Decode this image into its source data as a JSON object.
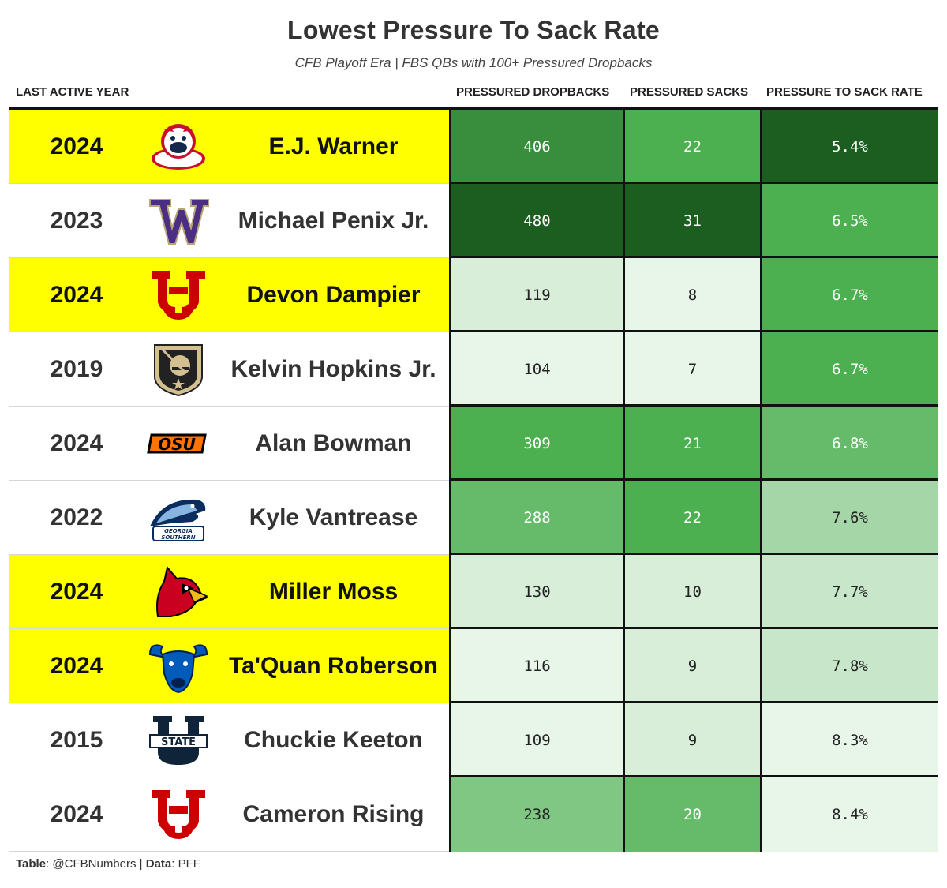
{
  "title": "Lowest Pressure To Sack Rate",
  "subtitle": "CFB Playoff Era | FBS QBs with 100+ Pressured Dropbacks",
  "columns": {
    "year": "LAST ACTIVE YEAR",
    "dropbacks": "PRESSURED DROPBACKS",
    "sacks": "PRESSURED SACKS",
    "rate": "PRESSURE TO SACK RATE"
  },
  "footer": {
    "table_label": "Table",
    "table_value": ": @CFBNumbers | ",
    "data_label": "Data",
    "data_value": ": PFF"
  },
  "colors": {
    "highlight": "#ffff00",
    "scale_light": "#e8f5e9",
    "scale_dark": "#1b5e20"
  },
  "chart_data": {
    "type": "table",
    "rows": [
      {
        "year": "2024",
        "logo": "fresno-state-bulldog-logo",
        "player": "E.J. Warner",
        "dropbacks": "406",
        "sacks": "22",
        "rate": "5.4%",
        "highlight": true
      },
      {
        "year": "2023",
        "logo": "washington-w-logo",
        "player": "Michael Penix Jr.",
        "dropbacks": "480",
        "sacks": "31",
        "rate": "6.5%",
        "highlight": false
      },
      {
        "year": "2024",
        "logo": "utah-u-logo",
        "player": "Devon Dampier",
        "dropbacks": "119",
        "sacks": "8",
        "rate": "6.7%",
        "highlight": true
      },
      {
        "year": "2019",
        "logo": "army-knight-logo",
        "player": "Kelvin Hopkins Jr.",
        "dropbacks": "104",
        "sacks": "7",
        "rate": "6.7%",
        "highlight": false
      },
      {
        "year": "2024",
        "logo": "oklahoma-state-osu-logo",
        "player": "Alan Bowman",
        "dropbacks": "309",
        "sacks": "21",
        "rate": "6.8%",
        "highlight": false
      },
      {
        "year": "2022",
        "logo": "georgia-southern-eagle-logo",
        "player": "Kyle Vantrease",
        "dropbacks": "288",
        "sacks": "22",
        "rate": "7.6%",
        "highlight": false
      },
      {
        "year": "2024",
        "logo": "louisville-cardinal-logo",
        "player": "Miller Moss",
        "dropbacks": "130",
        "sacks": "10",
        "rate": "7.7%",
        "highlight": true
      },
      {
        "year": "2024",
        "logo": "buffalo-bull-logo",
        "player": "Ta'Quan Roberson",
        "dropbacks": "116",
        "sacks": "9",
        "rate": "7.8%",
        "highlight": true
      },
      {
        "year": "2015",
        "logo": "utah-state-u-logo",
        "player": "Chuckie Keeton",
        "dropbacks": "109",
        "sacks": "9",
        "rate": "8.3%",
        "highlight": false
      },
      {
        "year": "2024",
        "logo": "utah-u-logo",
        "player": "Cameron Rising",
        "dropbacks": "238",
        "sacks": "20",
        "rate": "8.4%",
        "highlight": false
      }
    ]
  }
}
